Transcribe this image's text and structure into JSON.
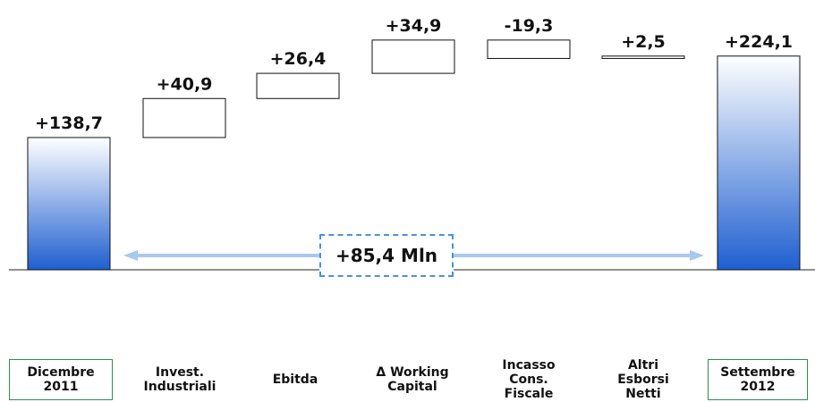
{
  "chart_data": {
    "type": "bar",
    "subtype": "waterfall",
    "categories": [
      "Dicembre\n2011",
      "Invest.\nIndustriali",
      "Ebitda",
      "Δ  Working\nCapital",
      "Incasso\nCons.\nFiscale",
      "Altri\nEsborsi\nNetti",
      "Settembre\n2012"
    ],
    "values": [
      138.7,
      40.9,
      26.4,
      34.9,
      -19.3,
      2.5,
      224.1
    ],
    "kinds": [
      "total",
      "delta",
      "delta",
      "delta",
      "delta",
      "delta",
      "total"
    ],
    "data_labels": [
      "+138,7",
      "+40,9",
      "+26,4",
      "+34,9",
      "-19,3",
      "+2,5",
      "+224,1"
    ],
    "annotation": "+85,4 Mln",
    "colors": {
      "bar_top": "#ffffff",
      "bar_bottom": "#1f5fd0",
      "arrow": "#a9c8ef",
      "box_border": "#111111",
      "total_label_border": "#2e8b57"
    }
  }
}
